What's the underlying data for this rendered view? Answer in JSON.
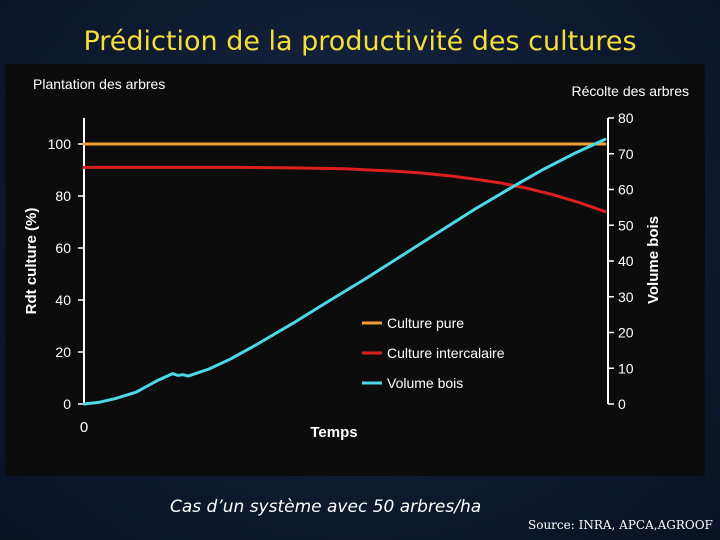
{
  "slide": {
    "title": "Prédiction de la productivité des cultures",
    "caption": "Cas d’un système avec 50 arbres/ha",
    "source": "Source: INRA, APCA,AGROOF"
  },
  "colors": {
    "background": "#14213d",
    "title": "#f2df3a",
    "panel": "#0c0c0c",
    "culture_pure": "#f0a030",
    "culture_intercalaire": "#dd1f1f",
    "volume_bois": "#4dd8e8"
  },
  "chart_data": {
    "type": "line",
    "title_left": "Plantation des arbres",
    "title_right": "Récolte des arbres",
    "xlabel": "Temps",
    "x_tick_labels": [
      "0"
    ],
    "ylabel_left": "Rdt culture (%)",
    "ylabel_right": "Volume bois",
    "xlim": [
      0,
      100
    ],
    "ylim_left": [
      0,
      110
    ],
    "ylim_right": [
      0,
      80
    ],
    "yticks_left": [
      0,
      20,
      40,
      60,
      80,
      100
    ],
    "yticks_right": [
      0,
      10,
      20,
      30,
      40,
      50,
      60,
      70,
      80
    ],
    "grid": false,
    "legend_position": "center-right",
    "series": [
      {
        "name": "Culture pure",
        "axis": "left",
        "color": "#f0a030",
        "x": [
          0,
          100
        ],
        "y": [
          100,
          100
        ]
      },
      {
        "name": "Culture intercalaire",
        "axis": "left",
        "color": "#dd1f1f",
        "x": [
          0,
          10,
          20,
          30,
          40,
          50,
          60,
          65,
          70,
          75,
          80,
          85,
          90,
          95,
          100
        ],
        "y": [
          91,
          91,
          91,
          91,
          90.8,
          90.5,
          89.5,
          88.8,
          87.8,
          86.5,
          85,
          83,
          80.5,
          77.5,
          74
        ]
      },
      {
        "name": "Volume bois",
        "axis": "right",
        "color": "#4dd8e8",
        "x": [
          0,
          3,
          6,
          10,
          14,
          17,
          18,
          19,
          20,
          24,
          28,
          33,
          40,
          47,
          54,
          61,
          68,
          75,
          82,
          88,
          94,
          100
        ],
        "y": [
          0,
          0.5,
          1.5,
          3.3,
          6.5,
          8.5,
          8.0,
          8.2,
          7.8,
          9.8,
          12.5,
          16.5,
          22.5,
          28.8,
          35,
          41.5,
          48,
          54.5,
          60.5,
          65.5,
          70,
          74
        ]
      }
    ]
  }
}
